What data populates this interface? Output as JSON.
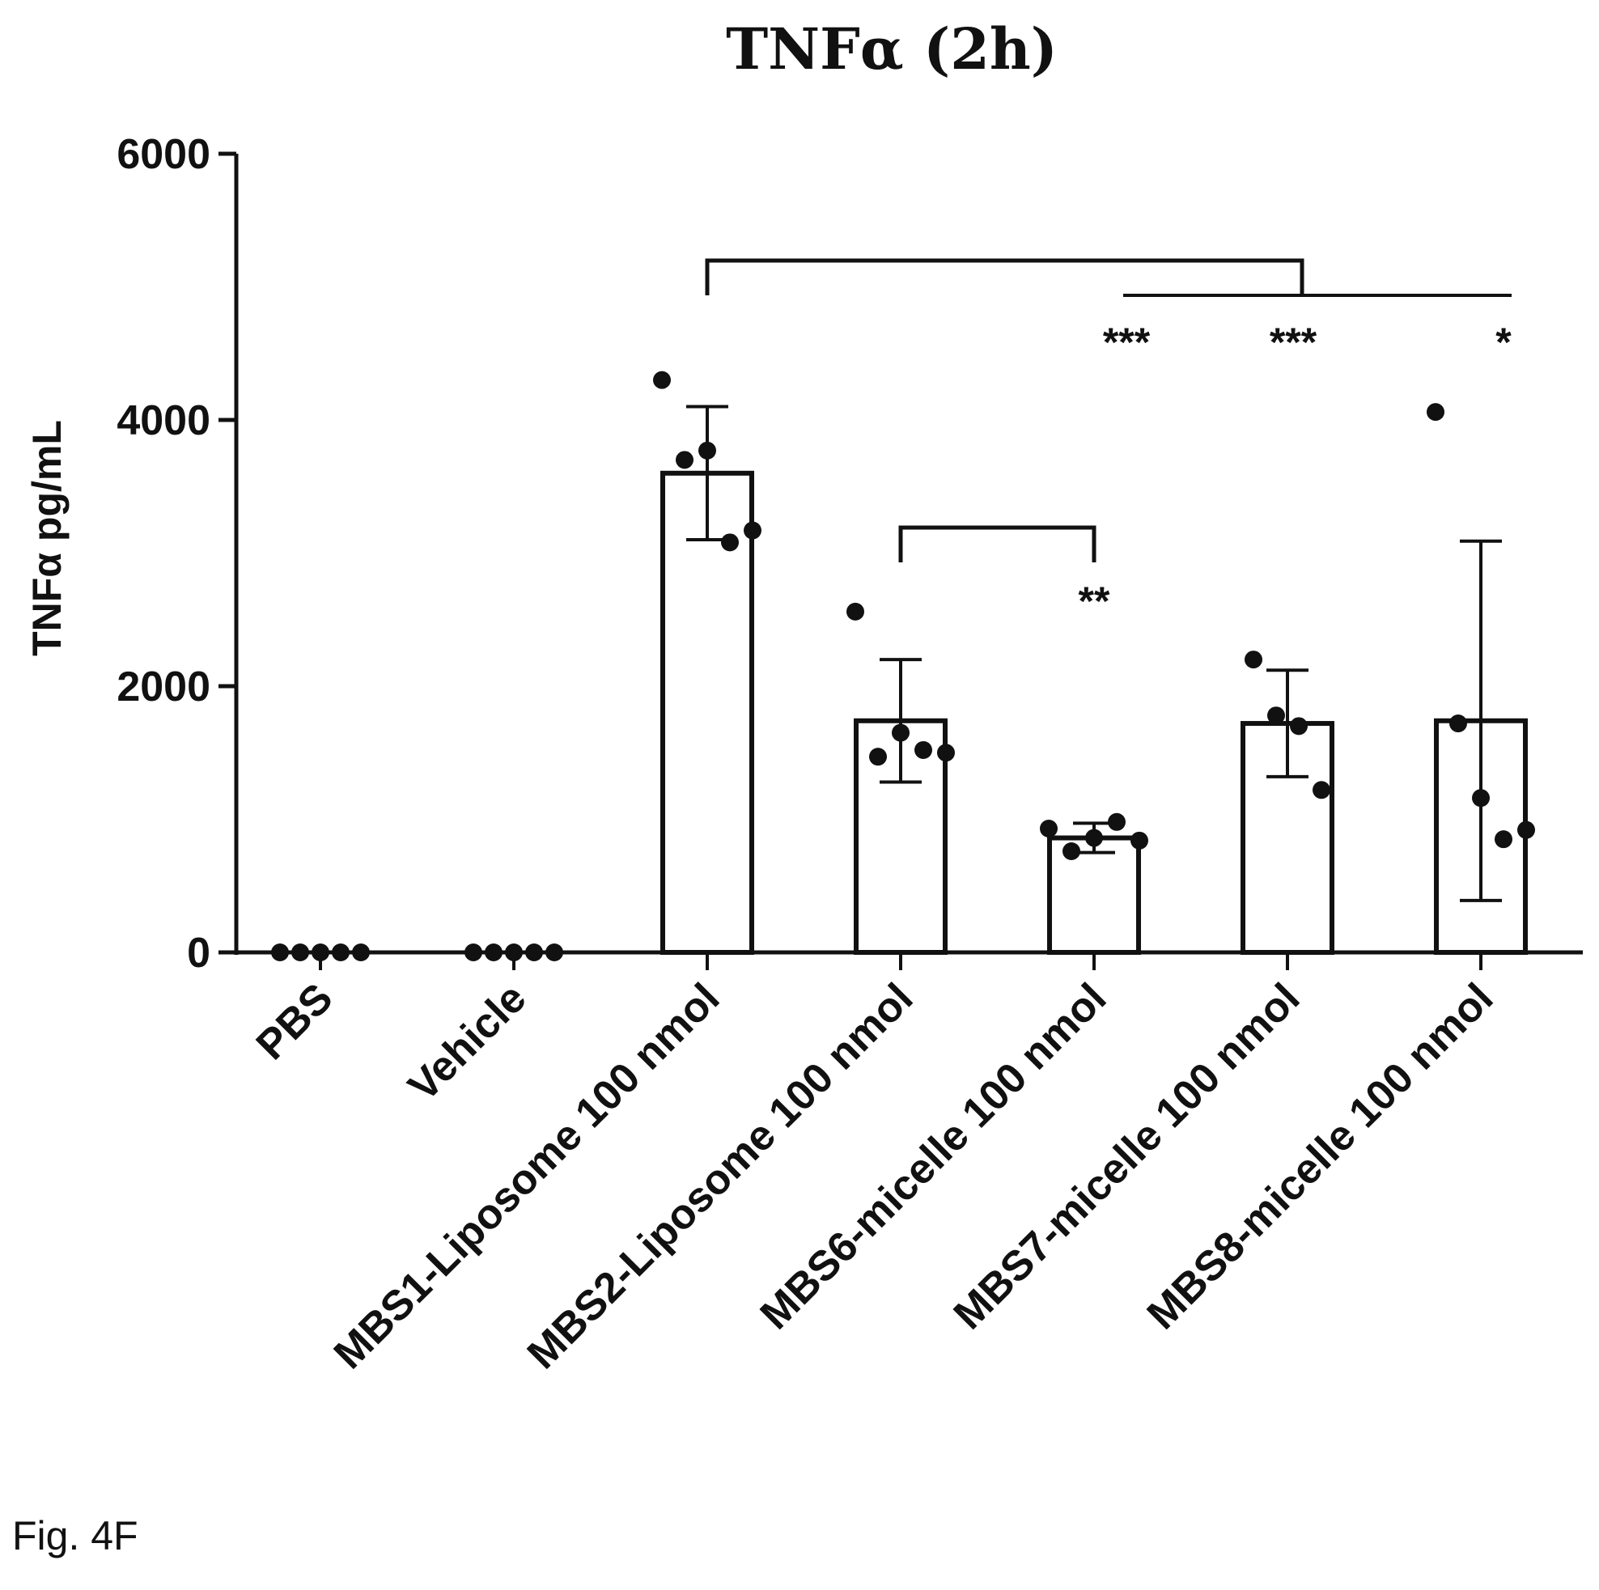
{
  "chart_data": {
    "type": "bar",
    "title": "TNFα (2h)",
    "ylabel": "TNFα pg/mL",
    "xlabel": "",
    "ylim": [
      0,
      6000
    ],
    "yticks": [
      0,
      2000,
      4000,
      6000
    ],
    "grid": false,
    "categories": [
      "PBS",
      "Vehicle",
      "MBS1-Liposome 100 nmol",
      "MBS2-Liposome 100 nmol",
      "MBS6-micelle 100 nmol",
      "MBS7-micelle 100 nmol",
      "MBS8-micelle 100 nmol"
    ],
    "values": [
      0,
      0,
      3600,
      1740,
      860,
      1720,
      1740
    ],
    "error_sd": [
      0,
      0,
      500,
      460,
      110,
      400,
      1350
    ],
    "points": [
      [
        0,
        0,
        0,
        0,
        0
      ],
      [
        0,
        0,
        0,
        0,
        0
      ],
      [
        4300,
        3700,
        3770,
        3080,
        3170
      ],
      [
        2560,
        1470,
        1650,
        1520,
        1500
      ],
      [
        930,
        760,
        860,
        980,
        840
      ],
      [
        2200,
        1780,
        1700,
        1220
      ],
      [
        4060,
        1720,
        1160,
        850,
        920
      ]
    ],
    "comparisons": [
      {
        "from": 2,
        "to": [
          4,
          5,
          6
        ],
        "labels": [
          "***",
          "***",
          "*"
        ]
      },
      {
        "from": 3,
        "to": [
          4
        ],
        "labels": [
          "**"
        ]
      }
    ]
  },
  "caption": "Fig. 4F"
}
